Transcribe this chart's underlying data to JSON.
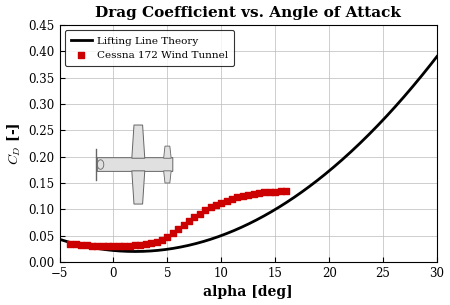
{
  "title": "Drag Coefficient vs. Angle of Attack",
  "xlabel": "alpha [deg]",
  "ylabel": "C_D [-]",
  "xlim": [
    -5,
    30
  ],
  "ylim": [
    0,
    0.45
  ],
  "xticks": [
    -5,
    0,
    5,
    10,
    15,
    20,
    25,
    30
  ],
  "yticks": [
    0,
    0.05,
    0.1,
    0.15,
    0.2,
    0.25,
    0.3,
    0.35,
    0.4,
    0.45
  ],
  "theory_color": "#000000",
  "data_color": "#cc0000",
  "background_color": "#ffffff",
  "cessna_alpha": [
    -4,
    -3.5,
    -3,
    -2.5,
    -2,
    -1.5,
    -1,
    -0.5,
    0,
    0.5,
    1,
    1.5,
    2,
    2.5,
    3,
    3.5,
    4,
    4.5,
    5,
    5.5,
    6,
    6.5,
    7,
    7.5,
    8,
    8.5,
    9,
    9.5,
    10,
    10.5,
    11,
    11.5,
    12,
    12.5,
    13,
    13.5,
    14,
    14.5,
    15,
    15.5,
    16
  ],
  "cessna_cd": [
    0.035,
    0.034,
    0.033,
    0.032,
    0.031,
    0.031,
    0.031,
    0.031,
    0.03,
    0.03,
    0.031,
    0.031,
    0.032,
    0.033,
    0.035,
    0.036,
    0.038,
    0.042,
    0.048,
    0.055,
    0.063,
    0.071,
    0.078,
    0.085,
    0.092,
    0.098,
    0.104,
    0.108,
    0.112,
    0.116,
    0.12,
    0.124,
    0.126,
    0.128,
    0.13,
    0.131,
    0.132,
    0.133,
    0.133,
    0.134,
    0.135
  ],
  "legend_theory": "Lifting Line Theory",
  "legend_data": "Cessna 172 Wind Tunnel",
  "theory_CD0_min": 0.02,
  "theory_alpha0_min": 2.0,
  "theory_cd_at_30": 0.39,
  "title_fontsize": 11,
  "axis_fontsize": 10,
  "tick_fontsize": 8.5
}
